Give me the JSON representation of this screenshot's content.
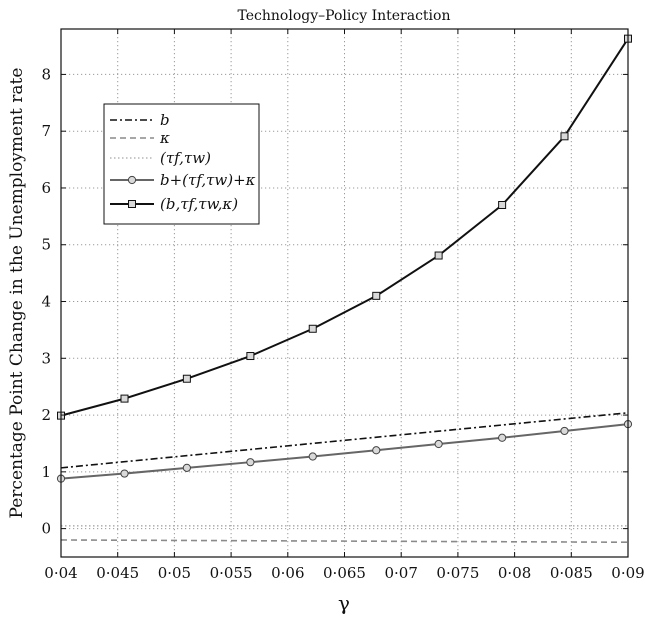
{
  "chart_data": {
    "type": "line",
    "title": "Technology–Policy Interaction",
    "xlabel": "γ",
    "ylabel": "Percentage Point Change in the Unemployment rate",
    "xlim": [
      0.04,
      0.09
    ],
    "ylim": [
      -0.5,
      8.8
    ],
    "xticks": [
      0.04,
      0.045,
      0.05,
      0.055,
      0.06,
      0.065,
      0.07,
      0.075,
      0.08,
      0.085,
      0.09
    ],
    "xtick_labels": [
      "0·04",
      "0·045",
      "0·05",
      "0·055",
      "0·06",
      "0·065",
      "0·07",
      "0·075",
      "0·08",
      "0·085",
      "0·09"
    ],
    "yticks": [
      0,
      1,
      2,
      3,
      4,
      5,
      6,
      7,
      8
    ],
    "ytick_labels": [
      "0",
      "1",
      "2",
      "3",
      "4",
      "5",
      "6",
      "7",
      "8"
    ],
    "grid": true,
    "legend_position": "upper-left",
    "series": [
      {
        "name": "b",
        "style": "dashdot",
        "color": "#111111",
        "marker": "none",
        "x": [
          0.04,
          0.09
        ],
        "values": [
          1.07,
          2.04
        ]
      },
      {
        "name": "κ",
        "style": "dashed",
        "color": "#8a8a8a",
        "marker": "none",
        "x": [
          0.04,
          0.09
        ],
        "values": [
          -0.2,
          -0.24
        ]
      },
      {
        "name": "(τf,τw)",
        "style": "dotted",
        "color": "#b5b5b5",
        "marker": "none",
        "x": [
          0.04,
          0.09
        ],
        "values": [
          0.05,
          0.05
        ]
      },
      {
        "name": "b+(τf,τw)+κ",
        "style": "solid",
        "color": "#666666",
        "marker": "circle",
        "x": [
          0.04,
          0.0456,
          0.0511,
          0.0567,
          0.0622,
          0.0678,
          0.0733,
          0.0789,
          0.0844,
          0.09
        ],
        "values": [
          0.88,
          0.97,
          1.07,
          1.17,
          1.27,
          1.38,
          1.49,
          1.6,
          1.72,
          1.84
        ]
      },
      {
        "name": "(b,τf,τw,κ)",
        "style": "solid",
        "color": "#111111",
        "marker": "square",
        "x": [
          0.04,
          0.0456,
          0.0511,
          0.0567,
          0.0622,
          0.0678,
          0.0733,
          0.0789,
          0.0844,
          0.09
        ],
        "values": [
          1.99,
          2.29,
          2.64,
          3.04,
          3.52,
          4.1,
          4.81,
          5.7,
          6.91,
          8.63
        ]
      }
    ]
  }
}
